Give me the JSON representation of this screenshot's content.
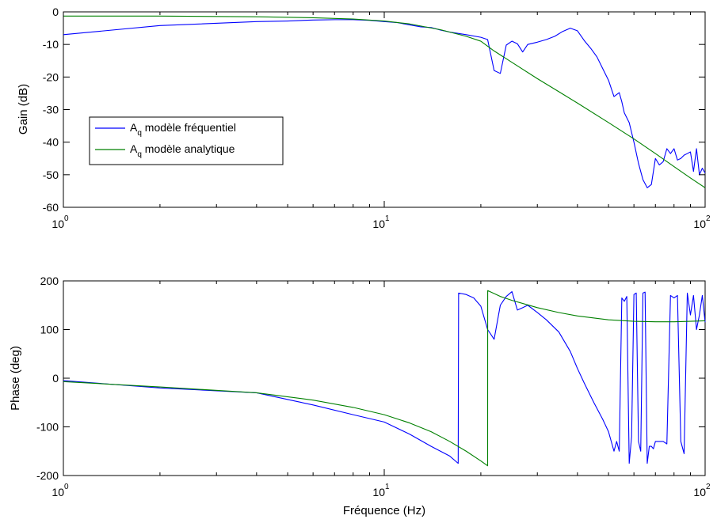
{
  "chart_data": [
    {
      "type": "line",
      "title": "",
      "xlabel": "",
      "ylabel": "Gain (dB)",
      "xscale": "log",
      "xlim": [
        1,
        100
      ],
      "ylim": [
        -60,
        0
      ],
      "grid": false,
      "xticks": [
        {
          "value": 1,
          "base": "10",
          "exp": "0"
        },
        {
          "value": 10,
          "base": "10",
          "exp": "1"
        },
        {
          "value": 100,
          "base": "10",
          "exp": "2"
        }
      ],
      "yticks": [
        "0",
        "-10",
        "-20",
        "-30",
        "-40",
        "-50",
        "-60"
      ],
      "legend": {
        "placement": "center-left",
        "entries": [
          {
            "prefix": "A",
            "subscript": "q",
            "text": " modèle fréquentiel"
          },
          {
            "prefix": "A",
            "subscript": "q",
            "text": " modèle analytique"
          }
        ]
      },
      "series": [
        {
          "color": "#0000ff",
          "x": [
            1,
            2,
            4,
            5,
            6,
            7,
            8,
            9,
            10,
            11,
            12,
            13,
            14,
            15,
            16,
            18,
            20,
            21,
            22,
            23,
            24,
            25,
            26,
            27,
            28,
            30,
            32,
            34,
            36,
            38,
            40,
            42,
            44,
            46,
            48,
            50,
            52,
            54,
            55,
            56,
            58,
            60,
            62,
            64,
            66,
            68,
            70,
            72,
            74,
            76,
            78,
            80,
            82,
            84,
            86,
            88,
            90,
            92,
            94,
            96,
            98,
            100
          ],
          "y": [
            -7.0,
            -4.2,
            -3.0,
            -2.8,
            -2.5,
            -2.4,
            -2.4,
            -2.6,
            -3.0,
            -3.3,
            -4.0,
            -4.6,
            -4.8,
            -5.6,
            -6.2,
            -7.0,
            -7.8,
            -8.5,
            -18.0,
            -18.9,
            -10.2,
            -9.0,
            -9.8,
            -12.3,
            -10.0,
            -9.3,
            -8.5,
            -7.5,
            -6.0,
            -5.0,
            -5.8,
            -8.8,
            -11.2,
            -13.8,
            -17.5,
            -21.0,
            -26.0,
            -24.8,
            -27.6,
            -31.0,
            -34.0,
            -40.0,
            -46.5,
            -51.5,
            -54.0,
            -53.0,
            -45.0,
            -47.0,
            -46.0,
            -42.0,
            -43.5,
            -42.0,
            -45.5,
            -45.0,
            -44.0,
            -43.5,
            -43.0,
            -49.0,
            -42.0,
            -50.0,
            -48.0,
            -49.5
          ]
        },
        {
          "color": "#008000",
          "x": [
            1,
            2,
            4,
            6,
            8,
            10,
            12,
            15,
            18,
            20,
            22,
            25,
            30,
            35,
            40,
            50,
            60,
            70,
            80,
            90,
            100
          ],
          "y": [
            -1.3,
            -1.3,
            -1.5,
            -1.8,
            -2.2,
            -2.8,
            -3.7,
            -5.5,
            -7.5,
            -9.0,
            -12.0,
            -15.5,
            -20.5,
            -24.5,
            -28.0,
            -34.0,
            -39.0,
            -43.5,
            -47.5,
            -51.0,
            -54.0
          ]
        }
      ]
    },
    {
      "type": "line",
      "title": "",
      "xlabel": "Fréquence (Hz)",
      "ylabel": "Phase (deg)",
      "xscale": "log",
      "xlim": [
        1,
        100
      ],
      "ylim": [
        -200,
        200
      ],
      "grid": false,
      "xticks": [
        {
          "value": 1,
          "base": "10",
          "exp": "0"
        },
        {
          "value": 10,
          "base": "10",
          "exp": "1"
        },
        {
          "value": 100,
          "base": "10",
          "exp": "2"
        }
      ],
      "yticks": [
        "200",
        "100",
        "0",
        "-100",
        "-200"
      ],
      "series": [
        {
          "color": "#0000ff",
          "x": [
            1,
            2,
            4,
            6,
            8,
            10,
            12,
            14,
            16,
            17,
            17.05,
            18,
            19,
            20,
            21,
            22,
            23,
            24,
            25,
            26,
            27,
            28,
            30,
            32,
            35,
            38,
            40,
            42,
            45,
            48,
            50,
            52,
            53,
            54,
            55,
            56,
            57,
            58,
            59,
            60,
            61,
            62,
            63,
            64,
            65,
            66,
            67,
            68,
            69,
            70,
            72,
            74,
            76,
            78,
            80,
            82,
            84,
            86,
            88,
            90,
            92,
            94,
            96,
            98,
            100
          ],
          "y": [
            -5,
            -20,
            -30,
            -55,
            -75,
            -90,
            -115,
            -140,
            -160,
            -175,
            175,
            172,
            165,
            148,
            100,
            80,
            150,
            168,
            178,
            140,
            145,
            150,
            135,
            120,
            95,
            55,
            20,
            -10,
            -50,
            -85,
            -110,
            -150,
            -130,
            -150,
            165,
            158,
            168,
            -175,
            -120,
            172,
            175,
            -130,
            -150,
            175,
            177,
            -175,
            -140,
            -140,
            -145,
            -130,
            -130,
            -130,
            -135,
            170,
            165,
            170,
            -130,
            -155,
            175,
            130,
            170,
            100,
            130,
            170,
            115
          ]
        },
        {
          "color": "#008000",
          "x": [
            1,
            2,
            4,
            6,
            8,
            10,
            12,
            14,
            16,
            18,
            20,
            21,
            21.01,
            23,
            25,
            30,
            35,
            40,
            50,
            60,
            70,
            80,
            90,
            100
          ],
          "y": [
            -7,
            -18,
            -30,
            -45,
            -60,
            -75,
            -92,
            -110,
            -130,
            -150,
            -170,
            -180,
            180,
            168,
            160,
            145,
            135,
            128,
            120,
            117,
            116,
            116,
            117,
            118
          ]
        }
      ]
    }
  ]
}
